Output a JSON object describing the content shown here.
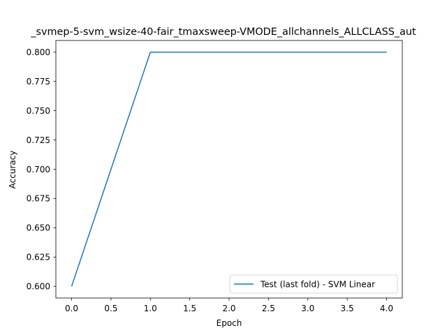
{
  "chart_data": {
    "type": "line",
    "title": "_svmep-5-svm_wsize-40-fair_tmaxsweep-VMODE_allchannels_ALLCLASS_aut",
    "xlabel": "Epoch",
    "ylabel": "Accuracy",
    "xlim": [
      -0.2,
      4.2
    ],
    "ylim": [
      0.59,
      0.81
    ],
    "x_ticks": [
      0.0,
      0.5,
      1.0,
      1.5,
      2.0,
      2.5,
      3.0,
      3.5,
      4.0
    ],
    "x_tick_labels": [
      "0.0",
      "0.5",
      "1.0",
      "1.5",
      "2.0",
      "2.5",
      "3.0",
      "3.5",
      "4.0"
    ],
    "y_ticks": [
      0.6,
      0.625,
      0.65,
      0.675,
      0.7,
      0.725,
      0.75,
      0.775,
      0.8
    ],
    "y_tick_labels": [
      "0.600",
      "0.625",
      "0.650",
      "0.675",
      "0.700",
      "0.725",
      "0.750",
      "0.775",
      "0.800"
    ],
    "grid": false,
    "legend_position": "lower-right",
    "series": [
      {
        "name": "Test (last fold) - SVM Linear",
        "color": "#1f77b4",
        "x": [
          0,
          1,
          2,
          3,
          4
        ],
        "values": [
          0.6,
          0.8,
          0.8,
          0.8,
          0.8
        ]
      }
    ]
  }
}
